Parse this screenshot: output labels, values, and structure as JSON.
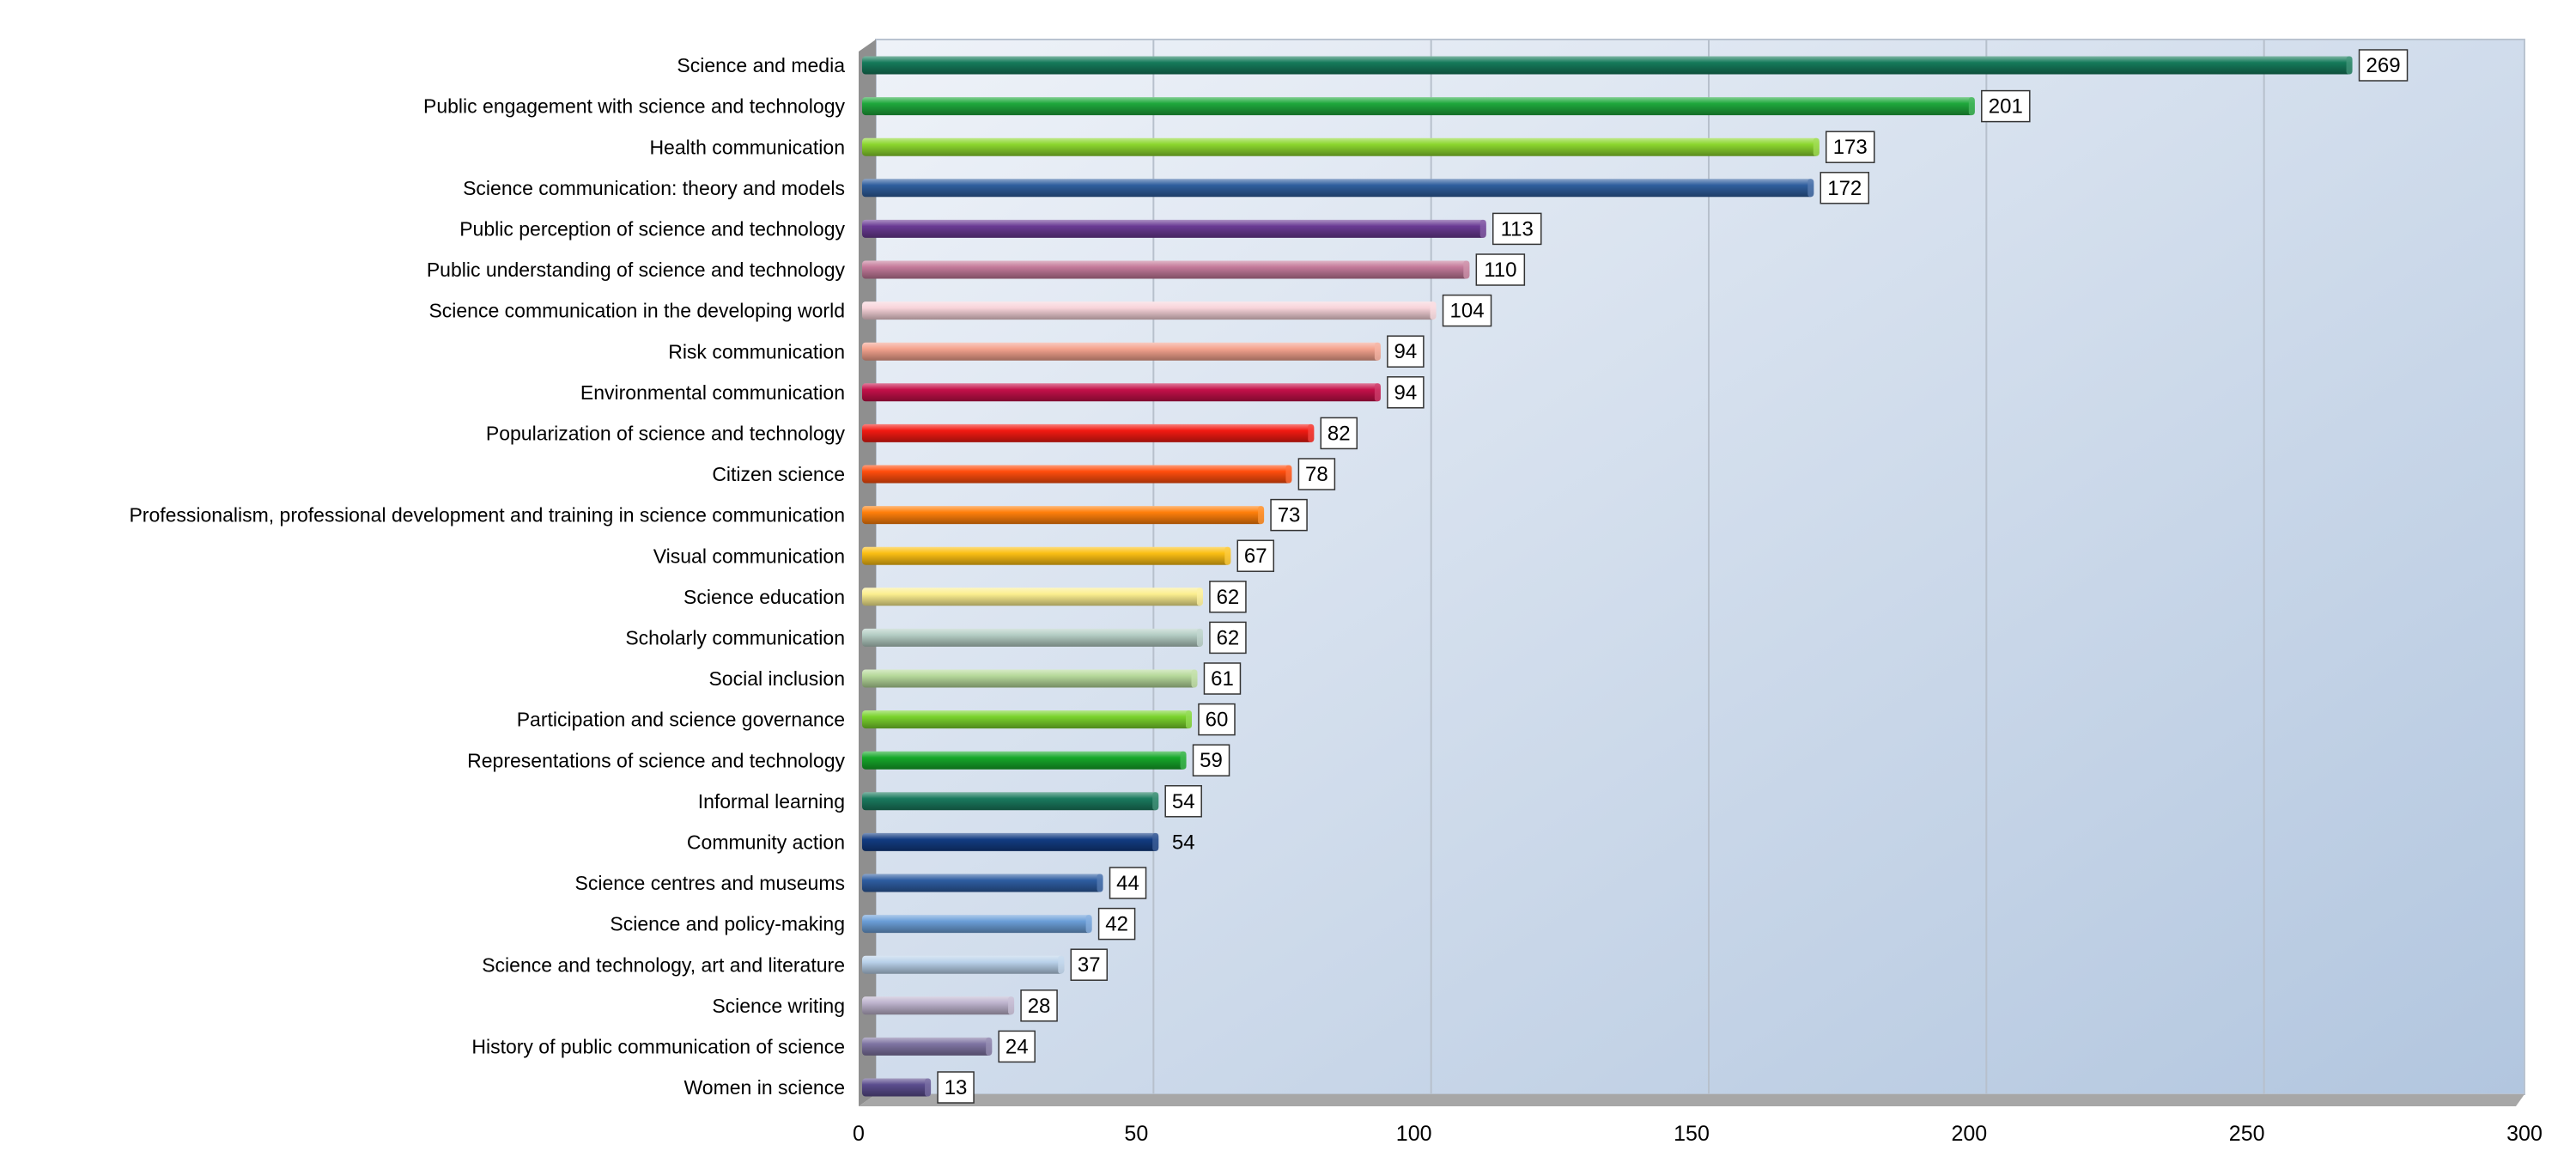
{
  "chart_data": {
    "type": "bar",
    "orientation": "horizontal",
    "title": "",
    "xlabel": "",
    "ylabel": "",
    "xlim": [
      0,
      300
    ],
    "x_ticks": [
      "0",
      "50",
      "100",
      "150",
      "200",
      "250",
      "300"
    ],
    "grid": true,
    "legend": "none",
    "data_labels": true,
    "categories": [
      "Science and media",
      "Public engagement with science and technology",
      "Health communication",
      "Science communication: theory and models",
      "Public perception of science and technology",
      "Public understanding of science and technology",
      "Science communication in the developing world",
      "Risk communication",
      "Environmental communication",
      "Popularization of science and technology",
      "Citizen science",
      "Professionalism, professional development and training in science communication",
      "Visual communication",
      "Science education",
      "Scholarly communication",
      "Social inclusion",
      "Participation and science governance",
      "Representations of science and technology",
      "Informal learning",
      "Community action",
      "Science centres and museums",
      "Science and policy-making",
      "Science and technology, art and literature",
      "Science writing",
      "History of public communication of science",
      "Women in science"
    ],
    "values": [
      269,
      201,
      173,
      172,
      113,
      110,
      104,
      94,
      94,
      82,
      78,
      73,
      67,
      62,
      62,
      61,
      60,
      59,
      54,
      54,
      44,
      42,
      37,
      28,
      24,
      13
    ],
    "labels": [
      "269",
      "201",
      "173",
      "172",
      "113",
      "110",
      "104",
      "94",
      "94",
      "82",
      "78",
      "73",
      "67",
      "62",
      "62",
      "61",
      "60",
      "59",
      "54",
      "54",
      "44",
      "42",
      "37",
      "28",
      "24",
      "13"
    ],
    "boxed_labels": [
      true,
      true,
      true,
      true,
      true,
      true,
      true,
      true,
      true,
      true,
      true,
      true,
      true,
      true,
      true,
      true,
      true,
      true,
      true,
      false,
      true,
      true,
      true,
      true,
      true,
      true
    ],
    "colors": [
      "#157a5a",
      "#1fa83c",
      "#8cd62e",
      "#2f5e9e",
      "#6a3b94",
      "#c47a9a",
      "#f8d4da",
      "#f4a38e",
      "#c41049",
      "#f21a12",
      "#ff4d0d",
      "#ff7f0b",
      "#fbbf14",
      "#fbee8f",
      "#b4cdc4",
      "#b6d99a",
      "#7ad32d",
      "#16a82a",
      "#1a7a5e",
      "#123c82",
      "#2e5da1",
      "#6b9ed8",
      "#b9d1ea",
      "#bdb3cd",
      "#7f75a3",
      "#5b4d8e"
    ],
    "plot_background": [
      "#eef2f8",
      "#b2c6df"
    ],
    "gridline_color": "#b7c0cc"
  }
}
